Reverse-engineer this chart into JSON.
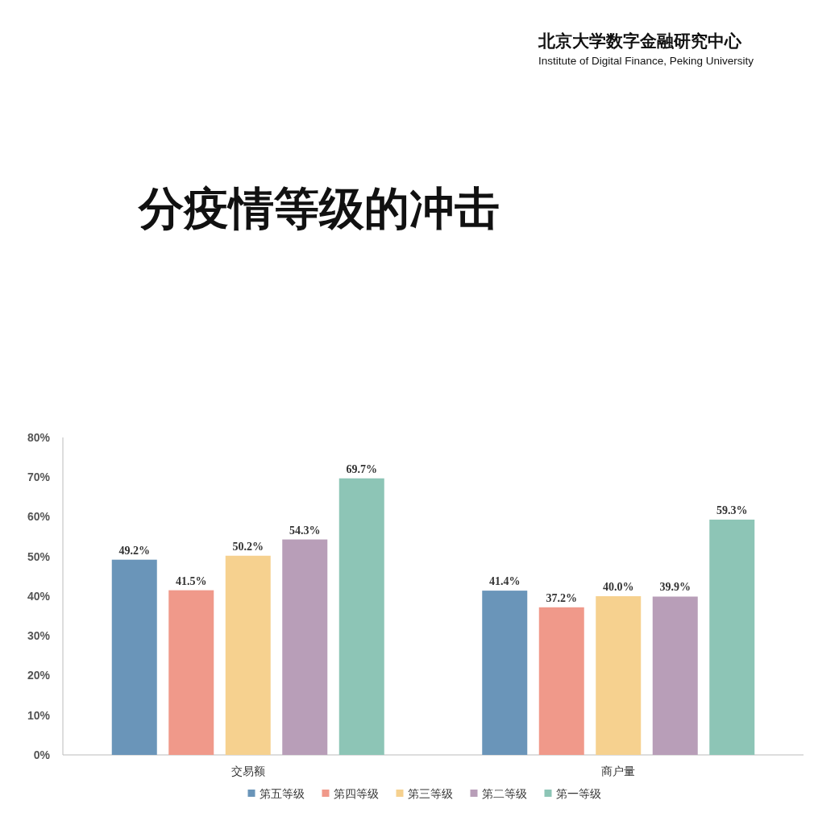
{
  "chart_data": {
    "type": "bar",
    "title": "分疫情等级的冲击",
    "annotations": [
      "北京大学数字金融研究中心",
      "Institute of Digital Finance, Peking University"
    ],
    "categories": [
      "交易额",
      "商户量"
    ],
    "series": [
      {
        "name": "第五等级",
        "color": "#6a95b9",
        "values": [
          49.2,
          41.4
        ],
        "value_labels": [
          "49.2%",
          "41.4%"
        ]
      },
      {
        "name": "第四等级",
        "color": "#f0998a",
        "values": [
          41.5,
          37.2
        ],
        "value_labels": [
          "41.5%",
          "37.2%"
        ]
      },
      {
        "name": "第三等级",
        "color": "#f6d18f",
        "values": [
          50.2,
          40.0
        ],
        "value_labels": [
          "50.2%",
          "40.0%"
        ]
      },
      {
        "name": "第二等级",
        "color": "#b89eb8",
        "values": [
          54.3,
          39.9
        ],
        "value_labels": [
          "54.3%",
          "39.9%"
        ]
      },
      {
        "name": "第一等级",
        "color": "#8dc5b6",
        "values": [
          69.7,
          59.3
        ],
        "value_labels": [
          "69.7%",
          "59.3%"
        ]
      }
    ],
    "ylim": [
      0,
      80
    ],
    "yticks": [
      {
        "value": 0,
        "label": "0%"
      },
      {
        "value": 10,
        "label": "10%"
      },
      {
        "value": 20,
        "label": "20%"
      },
      {
        "value": 30,
        "label": "30%"
      },
      {
        "value": 40,
        "label": "40%"
      },
      {
        "value": 50,
        "label": "50%"
      },
      {
        "value": 60,
        "label": "60%"
      },
      {
        "value": 70,
        "label": "70%"
      },
      {
        "value": 80,
        "label": "80%"
      }
    ],
    "grid": false,
    "legend": "bottom"
  }
}
